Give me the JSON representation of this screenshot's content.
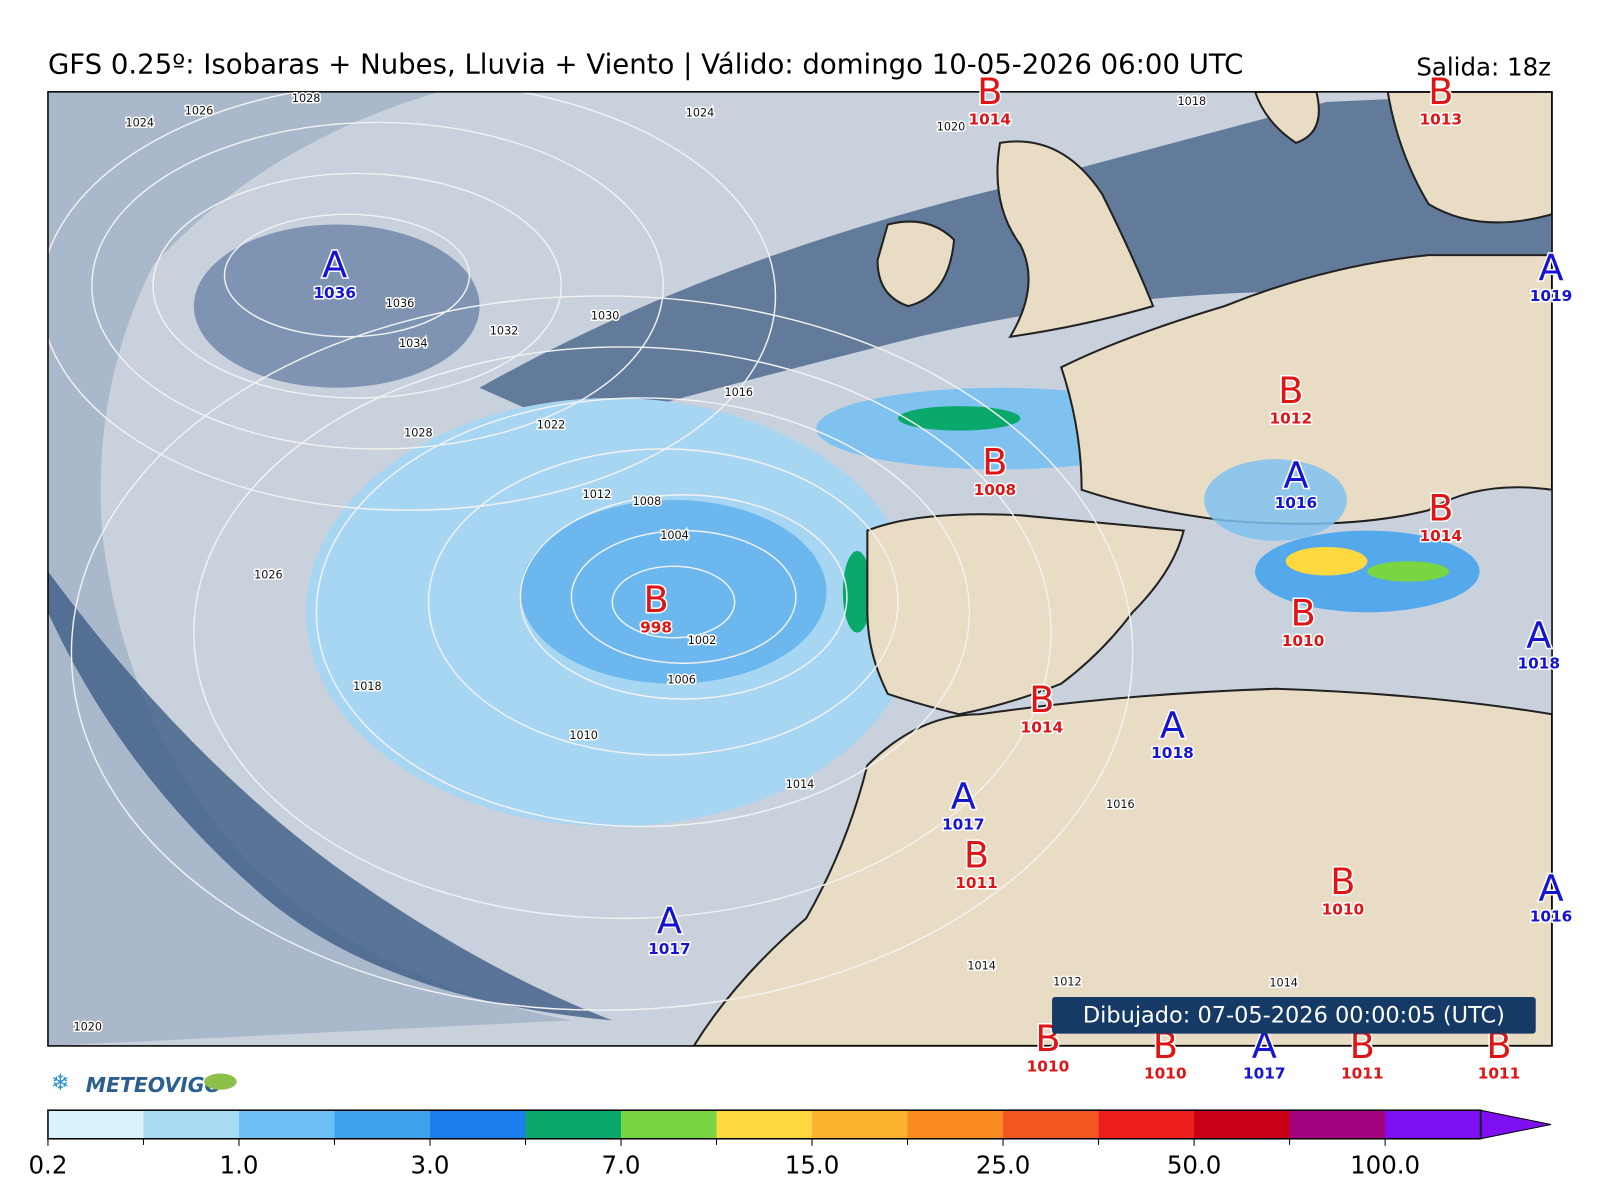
{
  "header": {
    "title": "GFS 0.25º: Isobaras + Nubes, Lluvia + Viento | Válido: domingo 10-05-2026 06:00 UTC",
    "run": "Salida: 18z"
  },
  "pressure_centers": [
    {
      "letter": "A",
      "value": 1036
    },
    {
      "letter": "B",
      "value": 1014
    },
    {
      "letter": "B",
      "value": 1013
    },
    {
      "letter": "A",
      "value": 1019
    },
    {
      "letter": "B",
      "value": 1012
    },
    {
      "letter": "B",
      "value": 1008
    },
    {
      "letter": "A",
      "value": 1016
    },
    {
      "letter": "B",
      "value": 1014
    },
    {
      "letter": "B",
      "value": 998
    },
    {
      "letter": "B",
      "value": 1010
    },
    {
      "letter": "A",
      "value": 1018
    },
    {
      "letter": "B",
      "value": 1014
    },
    {
      "letter": "A",
      "value": 1018
    },
    {
      "letter": "A",
      "value": 1017
    },
    {
      "letter": "B",
      "value": 1011
    },
    {
      "letter": "B",
      "value": 1010
    },
    {
      "letter": "A",
      "value": 1016
    },
    {
      "letter": "A",
      "value": 1017
    },
    {
      "letter": "B",
      "value": 1010
    },
    {
      "letter": "B",
      "value": 1010
    },
    {
      "letter": "A",
      "value": 1017
    },
    {
      "letter": "B",
      "value": 1011
    },
    {
      "letter": "B",
      "value": 1011
    }
  ],
  "isobar_labels": [
    1036,
    1034,
    1032,
    1030,
    1028,
    1026,
    1024,
    1022,
    1020,
    1016,
    1012,
    1008,
    1004,
    1002,
    1006,
    1010,
    1014,
    1018,
    1016,
    1014,
    1012,
    1014,
    1020,
    1028,
    1026,
    1024,
    1018
  ],
  "drawn_stamp": "Dibujado: 07-05-2026 00:00:05 (UTC)",
  "logo": "METEOVIGO",
  "colorbar": {
    "colors": [
      "#d9f3fc",
      "#a8dcf5",
      "#6cc0f3",
      "#3ea2ef",
      "#1a7fec",
      "#0aa86b",
      "#79d642",
      "#fdd83f",
      "#fcb22e",
      "#f98b21",
      "#f4561f",
      "#ed1e1c",
      "#c80018",
      "#a3037f",
      "#7d0ff0"
    ],
    "ticks": [
      0.2,
      {
        "value": 1,
        "label": "1.0"
      },
      {
        "value": 3,
        "label": "3.0"
      },
      {
        "value": 7,
        "label": "7.0"
      },
      {
        "value": 15,
        "label": "15.0"
      },
      {
        "value": 25,
        "label": "25.0"
      },
      {
        "value": 50,
        "label": "50.0"
      },
      {
        "value": 100,
        "label": "100.0"
      }
    ]
  }
}
